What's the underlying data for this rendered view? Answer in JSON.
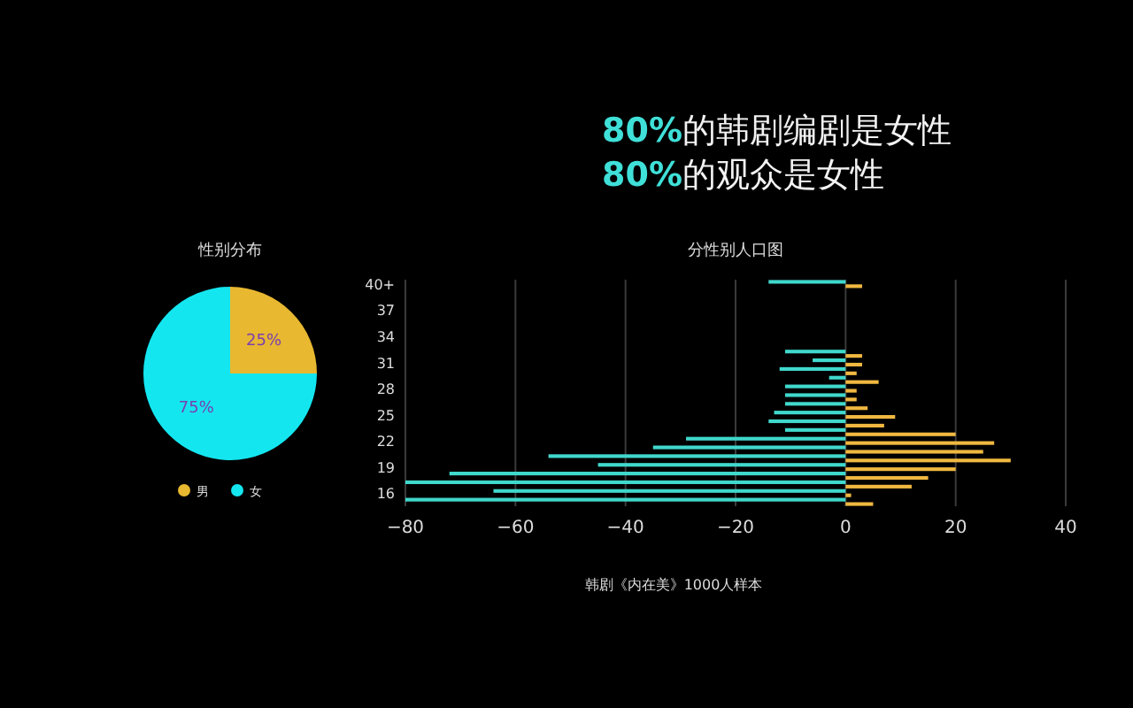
{
  "chart_data": [
    {
      "type": "other",
      "annotations": [
        "80%的韩剧编剧是女性",
        "80%的观众是女性"
      ]
    },
    {
      "type": "pie",
      "title": "性别分布",
      "categories": [
        "男",
        "女"
      ],
      "values": [
        25,
        75
      ],
      "colors": [
        "#e8b830",
        "#14e6f0"
      ],
      "value_labels": [
        "25%",
        "75%"
      ],
      "legend": "bottom"
    },
    {
      "type": "bar",
      "orientation": "horizontal",
      "title": "分性别人口图",
      "annotations": [
        "韩剧《内在美》1000人样本"
      ],
      "categories": [
        "40+",
        null,
        null,
        "37",
        null,
        null,
        "34",
        null,
        null,
        "31",
        null,
        null,
        "28",
        null,
        null,
        "25",
        null,
        null,
        "22",
        null,
        null,
        "19",
        null,
        null,
        "16",
        null
      ],
      "series": [
        {
          "color": "#40d8cc",
          "values": [
            -14,
            null,
            null,
            null,
            null,
            null,
            null,
            null,
            -11,
            -6,
            -12,
            -3,
            -11,
            -11,
            -11,
            -13,
            -14,
            -11,
            -29,
            -35,
            -54,
            -45,
            -72,
            -80,
            -64,
            -80
          ]
        },
        {
          "color": "#f0b840",
          "values": [
            3,
            null,
            null,
            null,
            null,
            null,
            null,
            null,
            3,
            3,
            2,
            6,
            2,
            2,
            4,
            9,
            7,
            20,
            27,
            25,
            30,
            20,
            15,
            12,
            1,
            5
          ]
        }
      ],
      "xlim": [
        -80,
        40
      ],
      "xticks": [
        -80,
        -60,
        -40,
        -20,
        0,
        20,
        40
      ],
      "grid": "x"
    }
  ]
}
